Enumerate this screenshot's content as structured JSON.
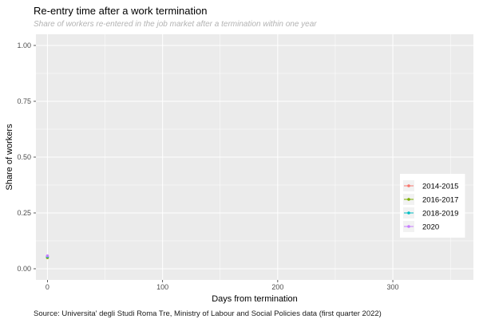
{
  "chart_data": {
    "type": "line",
    "title": "Re-entry time after a work termination",
    "subtitle": "Share of workers re-entered in the job market after a termination within one year",
    "xlabel": "Days from termination",
    "ylabel": "Share of workers",
    "caption": "Source: Universita' degli Studi Roma Tre, Ministry of Labour and Social Policies data (first quarter 2022)",
    "xlim": [
      -10,
      370
    ],
    "ylim": [
      -0.05,
      1.05
    ],
    "x_ticks": [
      0,
      100,
      200,
      300
    ],
    "x_tick_labels": [
      "0",
      "100",
      "200",
      "300"
    ],
    "y_ticks": [
      0,
      0.25,
      0.5,
      0.75,
      1
    ],
    "y_tick_labels": [
      "0.00",
      "0.25",
      "0.50",
      "0.75",
      "1.00"
    ],
    "grid": true,
    "legend_position": "right",
    "series": [
      {
        "name": "2014-2015",
        "color": "#F8766D",
        "x": [
          0
        ],
        "y": [
          0.05
        ]
      },
      {
        "name": "2016-2017",
        "color": "#7CAE00",
        "x": [
          0
        ],
        "y": [
          0.05
        ]
      },
      {
        "name": "2018-2019",
        "color": "#00BFC4",
        "x": [
          0
        ],
        "y": [
          0.055
        ]
      },
      {
        "name": "2020",
        "color": "#C77CFF",
        "x": [
          0
        ],
        "y": [
          0.058
        ]
      }
    ]
  }
}
